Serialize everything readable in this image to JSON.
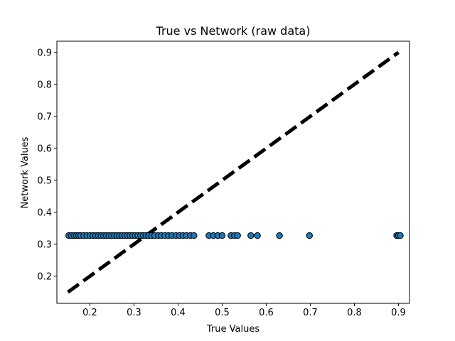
{
  "chart_data": {
    "type": "scatter",
    "title": "True vs Network (raw data)",
    "xlabel": "True Values",
    "ylabel": "Network Values",
    "xlim": [
      0.125,
      0.925
    ],
    "ylim": [
      0.115,
      0.935
    ],
    "xticks": [
      0.2,
      0.3,
      0.4,
      0.5,
      0.6,
      0.7,
      0.8,
      0.9
    ],
    "yticks": [
      0.2,
      0.3,
      0.4,
      0.5,
      0.6,
      0.7,
      0.8,
      0.9
    ],
    "grid": false,
    "legend": "none",
    "colors": {
      "point_fill": "#1f77b4",
      "point_edge": "#000000",
      "reference_line": "#000000"
    },
    "reference_line": {
      "style": "dashed",
      "x": [
        0.15,
        0.9
      ],
      "y": [
        0.15,
        0.9
      ]
    },
    "series": [
      {
        "points": [
          [
            0.152,
            0.327
          ],
          [
            0.158,
            0.327
          ],
          [
            0.164,
            0.327
          ],
          [
            0.169,
            0.327
          ],
          [
            0.174,
            0.327
          ],
          [
            0.179,
            0.327
          ],
          [
            0.186,
            0.327
          ],
          [
            0.193,
            0.327
          ],
          [
            0.2,
            0.327
          ],
          [
            0.207,
            0.327
          ],
          [
            0.213,
            0.327
          ],
          [
            0.219,
            0.327
          ],
          [
            0.225,
            0.327
          ],
          [
            0.231,
            0.327
          ],
          [
            0.237,
            0.327
          ],
          [
            0.243,
            0.327
          ],
          [
            0.249,
            0.327
          ],
          [
            0.255,
            0.327
          ],
          [
            0.261,
            0.327
          ],
          [
            0.267,
            0.327
          ],
          [
            0.273,
            0.327
          ],
          [
            0.279,
            0.327
          ],
          [
            0.285,
            0.327
          ],
          [
            0.291,
            0.327
          ],
          [
            0.297,
            0.327
          ],
          [
            0.303,
            0.327
          ],
          [
            0.309,
            0.327
          ],
          [
            0.315,
            0.327
          ],
          [
            0.321,
            0.327
          ],
          [
            0.327,
            0.327
          ],
          [
            0.333,
            0.327
          ],
          [
            0.34,
            0.327
          ],
          [
            0.347,
            0.327
          ],
          [
            0.355,
            0.327
          ],
          [
            0.362,
            0.327
          ],
          [
            0.37,
            0.327
          ],
          [
            0.378,
            0.327
          ],
          [
            0.386,
            0.327
          ],
          [
            0.395,
            0.327
          ],
          [
            0.403,
            0.327
          ],
          [
            0.411,
            0.327
          ],
          [
            0.419,
            0.327
          ],
          [
            0.428,
            0.327
          ],
          [
            0.436,
            0.327
          ],
          [
            0.47,
            0.327
          ],
          [
            0.48,
            0.327
          ],
          [
            0.49,
            0.327
          ],
          [
            0.5,
            0.327
          ],
          [
            0.52,
            0.327
          ],
          [
            0.528,
            0.327
          ],
          [
            0.535,
            0.327
          ],
          [
            0.565,
            0.327
          ],
          [
            0.58,
            0.327
          ],
          [
            0.63,
            0.327
          ],
          [
            0.698,
            0.327
          ],
          [
            0.896,
            0.327
          ],
          [
            0.9,
            0.327
          ],
          [
            0.904,
            0.327
          ]
        ]
      }
    ]
  }
}
